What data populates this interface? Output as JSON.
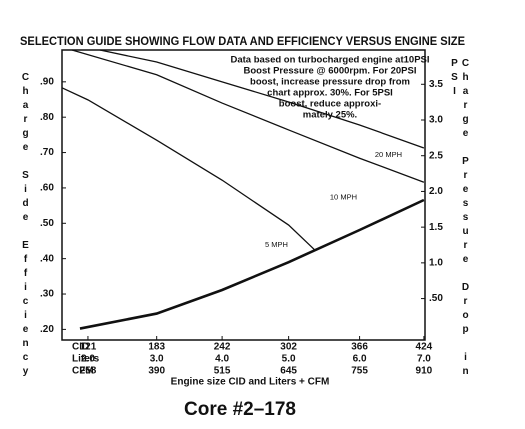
{
  "chart_data": {
    "type": "line",
    "title": "SELECTION GUIDE SHOWING FLOW DATA AND EFFICIENCY VERSUS ENGINE SIZE",
    "annotation": [
      "Data based on turbocharged engine at10PSI",
      "Boost Pressure @ 6000rpm. For 20PSI",
      "boost, increase pressure drop from",
      "chart approx. 30%. For 5PSI",
      "boost, reduce approxi-",
      "mately 25%."
    ],
    "ylabel": "Charge Side Efficiency",
    "y2label": "Charge Pressure Drop in PSI",
    "xlabel": "Engine size CID and Liters + CFM",
    "caption": "Core #2–178",
    "xlim": [
      97.6,
      425
    ],
    "xticks": [
      121,
      183,
      242,
      302,
      366,
      424
    ],
    "xtick_rows": [
      {
        "name": "CID",
        "labels": [
          "121",
          "183",
          "242",
          "302",
          "366",
          "424"
        ]
      },
      {
        "name": "Liters",
        "labels": [
          "2.0",
          "3.0",
          "4.0",
          "5.0",
          "6.0",
          "7.0"
        ]
      },
      {
        "name": "CFM",
        "labels": [
          "258",
          "390",
          "515",
          "645",
          "755",
          "910"
        ]
      }
    ],
    "ylim": [
      0.17,
      0.99
    ],
    "yticks": [
      {
        "value": 0.2,
        "label": ".20"
      },
      {
        "value": 0.3,
        "label": ".30"
      },
      {
        "value": 0.4,
        "label": ".40"
      },
      {
        "value": 0.5,
        "label": ".50"
      },
      {
        "value": 0.6,
        "label": ".60"
      },
      {
        "value": 0.7,
        "label": ".70"
      },
      {
        "value": 0.8,
        "label": ".80"
      },
      {
        "value": 0.9,
        "label": ".90"
      }
    ],
    "y2lim": [
      -0.08,
      3.98
    ],
    "y2ticks": [
      {
        "value": 0.5,
        "label": ".50"
      },
      {
        "value": 1,
        "label": "1.0"
      },
      {
        "value": 1.5,
        "label": "1.5"
      },
      {
        "value": 2,
        "label": "2.0"
      },
      {
        "value": 2.5,
        "label": "2.5"
      },
      {
        "value": 3,
        "label": "3.0"
      },
      {
        "value": 3.5,
        "label": "3.5"
      }
    ],
    "grid": false,
    "series": [
      {
        "name": "5 MPH",
        "color": "#111111",
        "x": [
          97.6,
          121,
          183,
          242,
          302,
          325.8
        ],
        "values": [
          0.883,
          0.849,
          0.735,
          0.622,
          0.495,
          0.424
        ]
      },
      {
        "name": "10 MPH",
        "color": "#111111",
        "x": [
          106.6,
          183,
          242,
          302,
          366,
          424
        ],
        "values": [
          0.99,
          0.92,
          0.84,
          0.764,
          0.684,
          0.616
        ]
      },
      {
        "name": "20 MPH",
        "color": "#111111",
        "x": [
          131.8,
          183,
          242,
          302,
          366,
          424
        ],
        "values": [
          0.99,
          0.956,
          0.9,
          0.843,
          0.778,
          0.713
        ]
      },
      {
        "axis": "y2",
        "color": "#111111",
        "x": [
          113.8,
          183,
          242,
          302,
          366,
          424
        ],
        "values": [
          0.08,
          0.29,
          0.62,
          1.01,
          1.46,
          1.88
        ]
      }
    ]
  }
}
